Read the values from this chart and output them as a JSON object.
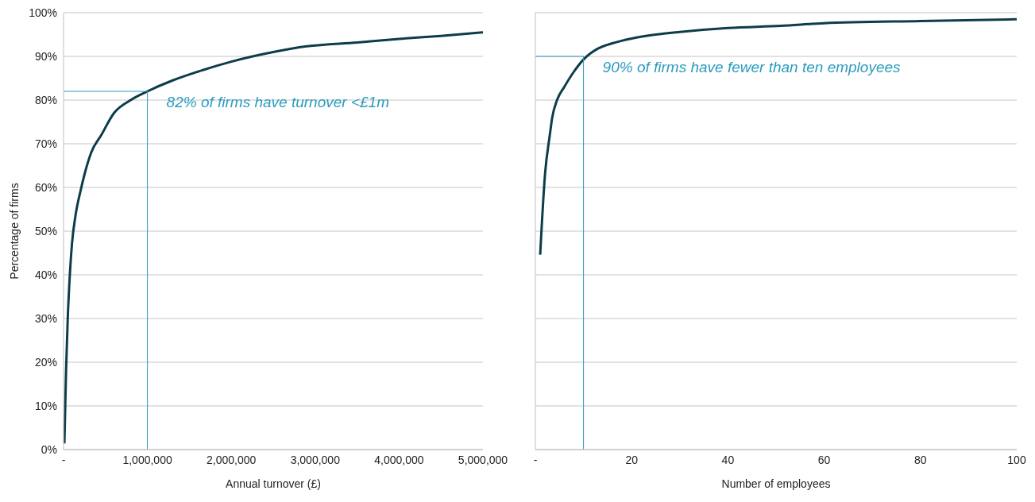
{
  "chart_data": [
    {
      "type": "line",
      "xlabel": "Annual turnover (£)",
      "ylabel": "Percentage of firms",
      "xlim": [
        0,
        5000000
      ],
      "xticks": [
        {
          "value": 0,
          "label": "-"
        },
        {
          "value": 1000000,
          "label": "1,000,000"
        },
        {
          "value": 2000000,
          "label": "2,000,000"
        },
        {
          "value": 3000000,
          "label": "3,000,000"
        },
        {
          "value": 4000000,
          "label": "4,000,000"
        },
        {
          "value": 5000000,
          "label": "5,000,000"
        }
      ],
      "ylim": [
        0,
        100
      ],
      "yticks": [
        {
          "value": 0,
          "label": "0%"
        },
        {
          "value": 10,
          "label": "10%"
        },
        {
          "value": 20,
          "label": "20%"
        },
        {
          "value": 30,
          "label": "30%"
        },
        {
          "value": 40,
          "label": "40%"
        },
        {
          "value": 50,
          "label": "50%"
        },
        {
          "value": 60,
          "label": "60%"
        },
        {
          "value": 70,
          "label": "70%"
        },
        {
          "value": 80,
          "label": "80%"
        },
        {
          "value": 90,
          "label": "90%"
        },
        {
          "value": 100,
          "label": "100%"
        }
      ],
      "grid": "y",
      "marker": "none",
      "series": [
        {
          "color": "#0d3d4a",
          "x": [
            10000,
            30000,
            50000,
            75000,
            100000,
            146000,
            200000,
            250000,
            330000,
            450000,
            600000,
            800000,
            1000000,
            1300000,
            1600000,
            2000000,
            2500000,
            2900000,
            3500000,
            4000000,
            4500000,
            5000000
          ],
          "values": [
            1.4,
            18,
            30,
            40,
            47,
            54,
            59,
            63,
            68,
            72,
            77,
            80,
            82,
            84.5,
            86.5,
            88.8,
            91,
            92.3,
            93.2,
            94,
            94.7,
            95.5
          ]
        }
      ],
      "ref_lines": [
        {
          "axis": "x",
          "value": 1000000,
          "color": "#2a9bbf"
        },
        {
          "axis": "y",
          "value": 82,
          "color": "#2a9bbf"
        }
      ],
      "annotations": [
        {
          "text": "82% of firms have turnover <£1m",
          "x": 1000000,
          "y": 82
        }
      ]
    },
    {
      "type": "line",
      "xlabel": "Number of employees",
      "xlim": [
        0,
        100
      ],
      "xticks": [
        {
          "value": 0,
          "label": "-"
        },
        20,
        40,
        60,
        80,
        100
      ],
      "ylim": [
        0,
        100
      ],
      "yticks": [
        0,
        10,
        20,
        30,
        40,
        50,
        60,
        70,
        80,
        90,
        100
      ],
      "grid": "y",
      "marker": "none",
      "tick_labels": "x",
      "series": [
        {
          "color": "#0d3d4a",
          "x": [
            1,
            2,
            3,
            3.5,
            4.5,
            6,
            8,
            10,
            13,
            16,
            20,
            25,
            30,
            40,
            51,
            60,
            80,
            100
          ],
          "values": [
            44.6,
            63,
            72,
            76,
            80,
            83,
            86.5,
            89.3,
            91.8,
            93,
            94.1,
            95,
            95.6,
            96.5,
            97,
            97.6,
            98.1,
            98.5
          ]
        }
      ],
      "ref_lines": [
        {
          "axis": "x",
          "value": 10,
          "color": "#2a9bbf"
        },
        {
          "axis": "y",
          "value": 90,
          "color": "#2a9bbf"
        }
      ],
      "annotations": [
        {
          "text": "90% of firms have fewer than ten employees",
          "x": 10,
          "y": 90
        }
      ]
    }
  ]
}
